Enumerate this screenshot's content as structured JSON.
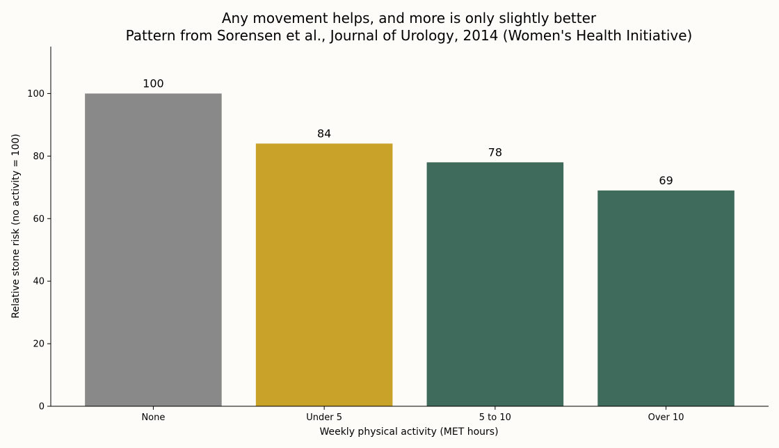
{
  "chart_data": {
    "type": "bar",
    "title": "Any movement helps, and more is only slightly better",
    "subtitle": "Pattern from Sorensen et al., Journal of Urology, 2014 (Women's Health Initiative)",
    "xlabel": "Weekly physical activity (MET hours)",
    "ylabel": "Relative stone risk (no activity = 100)",
    "categories": [
      "None",
      "Under 5",
      "5 to 10",
      "Over 10"
    ],
    "values": [
      100,
      84,
      78,
      69
    ],
    "value_labels": [
      "100",
      "84",
      "78",
      "69"
    ],
    "bar_colors": [
      "#898989",
      "#c9a22a",
      "#3e6b5b",
      "#3e6b5b"
    ],
    "ylim": [
      0,
      115
    ],
    "yticks": [
      0,
      20,
      40,
      60,
      80,
      100
    ],
    "grid": false,
    "legend": "none"
  },
  "colors": {
    "background": "#fdfcf8",
    "axis": "#000000",
    "text": "#000000"
  }
}
